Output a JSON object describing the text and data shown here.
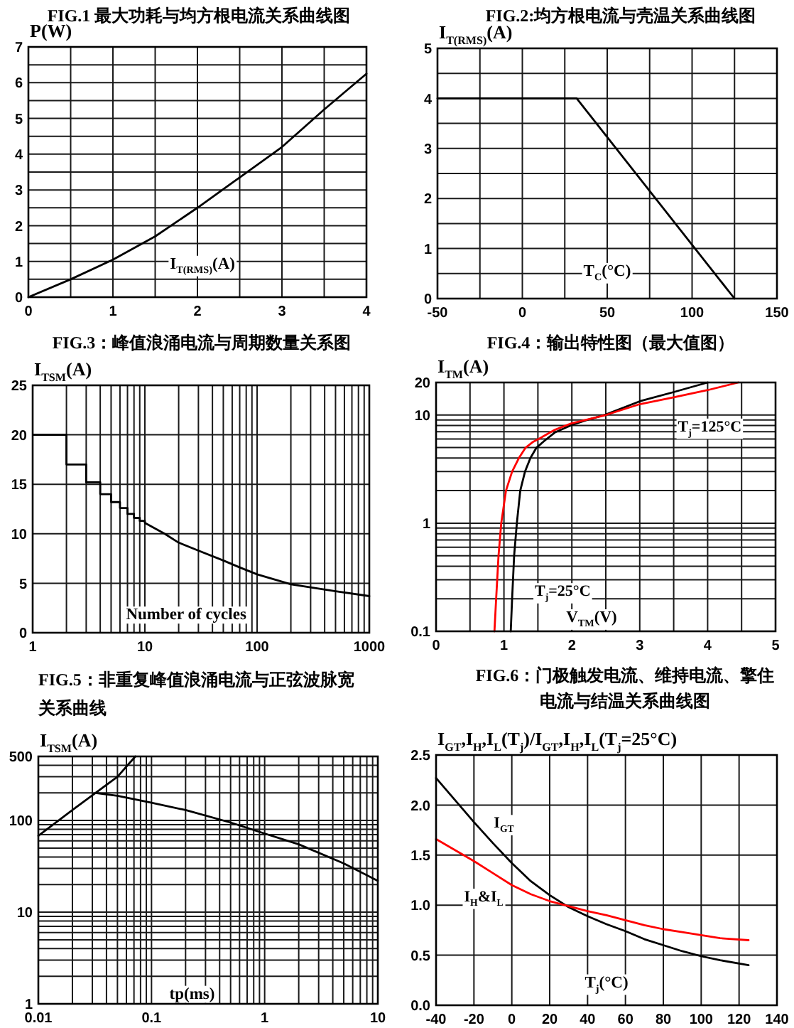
{
  "chart_data": [
    {
      "type": "line",
      "title": "FIG.1 最大功耗与均方根电流关系曲线图",
      "xlabel": "I$_{T(RMS)}$(A)",
      "ylabel": "P(W)",
      "x": [
        0,
        0.5,
        1,
        1.5,
        2,
        2.5,
        3,
        3.5,
        4
      ],
      "series": [
        {
          "color": "#000000",
          "values": [
            0,
            0.5,
            1.05,
            1.7,
            2.5,
            3.35,
            4.2,
            5.25,
            6.25
          ]
        }
      ],
      "xlim": [
        0,
        4
      ],
      "ylim": [
        0,
        7
      ],
      "xticks": [
        0,
        {
          "value": 0.5,
          "label": null
        },
        1,
        {
          "value": 1.5,
          "label": null
        },
        2,
        {
          "value": 2.5,
          "label": null
        },
        3,
        {
          "value": 3.5,
          "label": null
        },
        4
      ],
      "yticks": [
        0,
        {
          "value": 0.5,
          "label": null
        },
        1,
        {
          "value": 1.5,
          "label": null
        },
        2,
        {
          "value": 2.5,
          "label": null
        },
        3,
        {
          "value": 3.5,
          "label": null
        },
        4,
        {
          "value": 4.5,
          "label": null
        },
        5,
        {
          "value": 5.5,
          "label": null
        },
        6,
        {
          "value": 6.5,
          "label": null
        },
        7
      ],
      "grid": true
    },
    {
      "type": "line",
      "title": "FIG.2:均方根电流与壳温关系曲线图",
      "xlabel": "T$_{C}$(°C)",
      "ylabel": "I$_{T(RMS)}$(A)",
      "x": [
        -50,
        32,
        125
      ],
      "series": [
        {
          "color": "#000000",
          "values": [
            4,
            4,
            0
          ]
        }
      ],
      "xlim": [
        -50,
        150
      ],
      "ylim": [
        0,
        5
      ],
      "xticks": [
        -50,
        {
          "value": -25,
          "label": null
        },
        0,
        {
          "value": 25,
          "label": null
        },
        50,
        {
          "value": 75,
          "label": null
        },
        100,
        {
          "value": 125,
          "label": null
        },
        150
      ],
      "yticks": [
        0,
        {
          "value": 0.5,
          "label": null
        },
        1,
        {
          "value": 1.5,
          "label": null
        },
        2,
        {
          "value": 2.5,
          "label": null
        },
        3,
        {
          "value": 3.5,
          "label": null
        },
        4,
        {
          "value": 4.5,
          "label": null
        },
        5
      ],
      "grid": true
    },
    {
      "type": "line",
      "log": "x",
      "title": "FIG.3：峰值浪涌电流与周期数量关系图",
      "xlabel": "Number of cycles",
      "ylabel": "I$_{TSM}$(A)",
      "series": [
        {
          "type": "step",
          "color": "#000000",
          "x": [
            1,
            2,
            3,
            4,
            5,
            6,
            7,
            8,
            9,
            10
          ],
          "values": [
            20,
            17,
            15.2,
            14,
            13.2,
            12.6,
            12,
            11.6,
            11.3,
            11.1
          ]
        },
        {
          "color": "#000000",
          "x": [
            10,
            15,
            20,
            30,
            50,
            70,
            100,
            200,
            500,
            1000
          ],
          "values": [
            11.1,
            10,
            9.1,
            8.3,
            7.3,
            6.6,
            5.9,
            4.9,
            4.2,
            3.7
          ]
        }
      ],
      "xlim": [
        1,
        1000
      ],
      "ylim": [
        0,
        25
      ],
      "xticks": [
        1,
        {
          "value": 2,
          "label": null
        },
        {
          "value": 3,
          "label": null
        },
        {
          "value": 4,
          "label": null
        },
        {
          "value": 5,
          "label": null
        },
        {
          "value": 6,
          "label": null
        },
        {
          "value": 7,
          "label": null
        },
        {
          "value": 8,
          "label": null
        },
        {
          "value": 9,
          "label": null
        },
        10,
        {
          "value": 20,
          "label": null
        },
        {
          "value": 30,
          "label": null
        },
        {
          "value": 40,
          "label": null
        },
        {
          "value": 50,
          "label": null
        },
        {
          "value": 60,
          "label": null
        },
        {
          "value": 70,
          "label": null
        },
        {
          "value": 80,
          "label": null
        },
        {
          "value": 90,
          "label": null
        },
        100,
        {
          "value": 200,
          "label": null
        },
        {
          "value": 300,
          "label": null
        },
        {
          "value": 400,
          "label": null
        },
        {
          "value": 500,
          "label": null
        },
        {
          "value": 600,
          "label": null
        },
        {
          "value": 700,
          "label": null
        },
        {
          "value": 800,
          "label": null
        },
        {
          "value": 900,
          "label": null
        },
        1000
      ],
      "yticks": [
        0,
        5,
        10,
        15,
        20,
        25
      ],
      "grid": true
    },
    {
      "type": "line",
      "log": "y",
      "title": "FIG.4：输出特性图（最大值图）",
      "xlabel": "V$_{TM}$(V)",
      "ylabel": "I$_{TM}$(A)",
      "series": [
        {
          "name": "T$_{j}$=25°C",
          "color": "#000000",
          "x": [
            1.1,
            1.12,
            1.15,
            1.19,
            1.24,
            1.31,
            1.39,
            1.48,
            1.6,
            1.75,
            2,
            2.25,
            2.5,
            3,
            3.5,
            4
          ],
          "values": [
            0.1,
            0.2,
            0.5,
            1,
            2,
            3,
            4,
            5,
            5.8,
            6.9,
            8.1,
            9.1,
            10.1,
            13.4,
            16.3,
            20
          ]
        },
        {
          "name": "T$_{j}$=125°C",
          "color": "#ff0000",
          "x": [
            0.86,
            0.885,
            0.92,
            0.96,
            1.03,
            1.12,
            1.22,
            1.32,
            1.42,
            1.53,
            1.75,
            2,
            2.5,
            3,
            3.5,
            4,
            4.45
          ],
          "values": [
            0.1,
            0.2,
            0.5,
            1,
            2,
            3,
            4,
            5,
            5.6,
            6.1,
            7.3,
            8.4,
            10,
            12.6,
            14.6,
            17,
            20
          ]
        }
      ],
      "xlim": [
        0,
        5
      ],
      "ylim": [
        0.1,
        20
      ],
      "xticks": [
        0,
        {
          "value": 0.5,
          "label": null
        },
        1,
        {
          "value": 1.5,
          "label": null
        },
        2,
        {
          "value": 2.5,
          "label": null
        },
        3,
        {
          "value": 3.5,
          "label": null
        },
        4,
        {
          "value": 4.5,
          "label": null
        },
        5
      ],
      "yticks": [
        0.1,
        {
          "value": 0.2,
          "label": null
        },
        {
          "value": 0.3,
          "label": null
        },
        {
          "value": 0.4,
          "label": null
        },
        {
          "value": 0.5,
          "label": null
        },
        {
          "value": 0.6,
          "label": null
        },
        {
          "value": 0.7,
          "label": null
        },
        {
          "value": 0.8,
          "label": null
        },
        {
          "value": 0.9,
          "label": null
        },
        1,
        {
          "value": 2,
          "label": null
        },
        {
          "value": 3,
          "label": null
        },
        {
          "value": 4,
          "label": null
        },
        {
          "value": 5,
          "label": null
        },
        {
          "value": 6,
          "label": null
        },
        {
          "value": 7,
          "label": null
        },
        {
          "value": 8,
          "label": null
        },
        {
          "value": 9,
          "label": null
        },
        10,
        20
      ],
      "grid": true
    },
    {
      "type": "line",
      "log": "xy",
      "title": "FIG.5：非重复峰值浪涌电流与正弦波脉宽关系曲线",
      "xlabel": "tp(ms)",
      "ylabel": "I$_{TSM}$(A)",
      "series": [
        {
          "color": "#000000",
          "x": [
            0.01,
            0.02,
            0.032,
            0.05,
            0.072
          ],
          "values": [
            68,
            130,
            200,
            300,
            500
          ]
        },
        {
          "color": "#000000",
          "x": [
            0.032,
            0.05,
            0.1,
            0.2,
            0.5,
            1,
            2,
            5,
            10
          ],
          "values": [
            200,
            186,
            156,
            130,
            95,
            72,
            55,
            34,
            22
          ]
        }
      ],
      "xlim": [
        0.01,
        10
      ],
      "ylim": [
        1,
        500
      ],
      "xticks": [
        0.01,
        {
          "value": 0.02,
          "label": null
        },
        {
          "value": 0.03,
          "label": null
        },
        {
          "value": 0.04,
          "label": null
        },
        {
          "value": 0.05,
          "label": null
        },
        {
          "value": 0.06,
          "label": null
        },
        {
          "value": 0.07,
          "label": null
        },
        {
          "value": 0.08,
          "label": null
        },
        {
          "value": 0.09,
          "label": null
        },
        0.1,
        {
          "value": 0.2,
          "label": null
        },
        {
          "value": 0.3,
          "label": null
        },
        {
          "value": 0.4,
          "label": null
        },
        {
          "value": 0.5,
          "label": null
        },
        {
          "value": 0.6,
          "label": null
        },
        {
          "value": 0.7,
          "label": null
        },
        {
          "value": 0.8,
          "label": null
        },
        {
          "value": 0.9,
          "label": null
        },
        1,
        {
          "value": 2,
          "label": null
        },
        {
          "value": 3,
          "label": null
        },
        {
          "value": 4,
          "label": null
        },
        {
          "value": 5,
          "label": null
        },
        {
          "value": 6,
          "label": null
        },
        {
          "value": 7,
          "label": null
        },
        {
          "value": 8,
          "label": null
        },
        {
          "value": 9,
          "label": null
        },
        10
      ],
      "yticks": [
        1,
        {
          "value": 2,
          "label": null
        },
        {
          "value": 3,
          "label": null
        },
        {
          "value": 4,
          "label": null
        },
        {
          "value": 5,
          "label": null
        },
        {
          "value": 6,
          "label": null
        },
        {
          "value": 7,
          "label": null
        },
        {
          "value": 8,
          "label": null
        },
        {
          "value": 9,
          "label": null
        },
        10,
        {
          "value": 20,
          "label": null
        },
        {
          "value": 30,
          "label": null
        },
        {
          "value": 40,
          "label": null
        },
        {
          "value": 50,
          "label": null
        },
        {
          "value": 60,
          "label": null
        },
        {
          "value": 70,
          "label": null
        },
        {
          "value": 80,
          "label": null
        },
        {
          "value": 90,
          "label": null
        },
        100,
        {
          "value": 200,
          "label": null
        },
        {
          "value": 300,
          "label": null
        },
        {
          "value": 400,
          "label": null
        },
        500
      ],
      "grid": true
    },
    {
      "type": "line",
      "title": "FIG.6：门极触发电流、维持电流、擎住电流与结温关系曲线图",
      "xlabel": "T$_{j}$(°C)",
      "ylabel": "I$_{GT}$,I$_{H}$,I$_{L}$(T$_{j}$)/I$_{GT}$,I$_{H}$,I$_{L}$(T$_{j}$=25°C)",
      "x": [
        -40,
        -30,
        -20,
        -10,
        0,
        10,
        20,
        30,
        40,
        50,
        60,
        70,
        80,
        90,
        100,
        110,
        125
      ],
      "series": [
        {
          "name": "I$_{GT}$",
          "color": "#000000",
          "values": [
            2.27,
            2.05,
            1.83,
            1.62,
            1.42,
            1.24,
            1.1,
            0.98,
            0.89,
            0.81,
            0.74,
            0.66,
            0.6,
            0.54,
            0.49,
            0.45,
            0.4
          ]
        },
        {
          "name": "I$_{H}$&I$_{L}$",
          "color": "#ff0000",
          "values": [
            1.66,
            1.55,
            1.44,
            1.32,
            1.2,
            1.11,
            1.04,
            0.99,
            0.94,
            0.9,
            0.85,
            0.8,
            0.76,
            0.73,
            0.7,
            0.67,
            0.65
          ]
        }
      ],
      "xlim": [
        -40,
        140
      ],
      "ylim": [
        0,
        2.5
      ],
      "xticks": [
        -40,
        -20,
        0,
        20,
        40,
        60,
        80,
        100,
        120,
        140
      ],
      "yticks": [
        {
          "value": 0,
          "label": "0.0"
        },
        0.5,
        {
          "value": 1,
          "label": "1.0"
        },
        1.5,
        {
          "value": 2,
          "label": "2.0"
        },
        2.5
      ],
      "grid": true
    }
  ]
}
